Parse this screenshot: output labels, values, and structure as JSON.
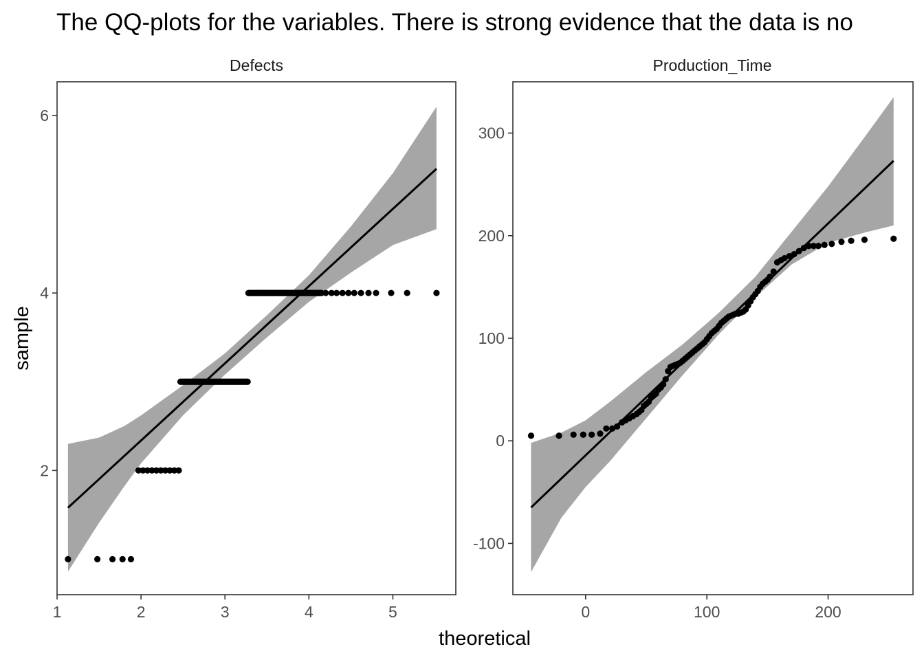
{
  "title": "The QQ-plots for the  variables. There is strong evidence that the data is no",
  "xlabel": "theoretical",
  "ylabel": "sample",
  "colors": {
    "band": "#a6a6a6",
    "line": "#000000",
    "points": "#000000",
    "border": "#333333"
  },
  "chart_data": [
    {
      "type": "scatter",
      "facet": "Defects",
      "xlim": [
        1.0,
        5.75
      ],
      "ylim": [
        0.6,
        6.38
      ],
      "x_ticks": [
        1,
        2,
        3,
        4,
        5
      ],
      "y_ticks": [
        2,
        4,
        6
      ],
      "reference_line": {
        "x": [
          1.13,
          5.52
        ],
        "y": [
          1.58,
          5.4
        ]
      },
      "confidence_band": {
        "x": [
          1.13,
          1.5,
          1.8,
          2.0,
          2.5,
          3.0,
          3.5,
          4.0,
          4.5,
          5.0,
          5.52
        ],
        "lower": [
          0.86,
          1.41,
          1.82,
          2.08,
          2.62,
          3.08,
          3.5,
          3.9,
          4.23,
          4.54,
          4.72
        ],
        "upper": [
          2.3,
          2.37,
          2.5,
          2.62,
          2.96,
          3.32,
          3.75,
          4.2,
          4.75,
          5.35,
          6.1
        ]
      },
      "points_by_level": [
        {
          "y": 1,
          "x": [
            1.13,
            1.48,
            1.66,
            1.78,
            1.88
          ]
        },
        {
          "y": 2,
          "x_from": 1.97,
          "x_to": 2.45,
          "n": 10
        },
        {
          "y": 3,
          "x_from": 2.47,
          "x_to": 3.27,
          "n": 60
        },
        {
          "y": 4,
          "x_from": 3.28,
          "x_to": 4.15,
          "n": 110
        },
        {
          "y": 4,
          "x": [
            4.2,
            4.27,
            4.33,
            4.4,
            4.47,
            4.54,
            4.62,
            4.71,
            4.8,
            4.98,
            5.17,
            5.52
          ]
        }
      ]
    },
    {
      "type": "scatter",
      "facet": "Production_Time",
      "xlim": [
        -60,
        270
      ],
      "ylim": [
        -150,
        350
      ],
      "x_ticks": [
        0,
        100,
        200
      ],
      "y_ticks": [
        -100,
        0,
        100,
        200,
        300
      ],
      "reference_line": {
        "x": [
          -45,
          254
        ],
        "y": [
          -65,
          273
        ]
      },
      "confidence_band": {
        "x": [
          -45,
          -20,
          0,
          20,
          50,
          80,
          110,
          140,
          170,
          200,
          230,
          254
        ],
        "lower": [
          -128,
          -75,
          -45,
          -20,
          22,
          64,
          104,
          140,
          172,
          193,
          203,
          210
        ],
        "upper": [
          -2,
          8,
          20,
          38,
          67,
          94,
          125,
          160,
          204,
          248,
          296,
          335
        ]
      },
      "points": [
        [
          -45,
          5
        ],
        [
          -22,
          5
        ],
        [
          -10,
          6
        ],
        [
          -2,
          6
        ],
        [
          5,
          6
        ],
        [
          12,
          7
        ],
        [
          17,
          12
        ],
        [
          22,
          12
        ],
        [
          26,
          14
        ],
        [
          30,
          18
        ],
        [
          33,
          20
        ],
        [
          36,
          22
        ],
        [
          39,
          24
        ],
        [
          42,
          26
        ],
        [
          44,
          28
        ],
        [
          46,
          30
        ],
        [
          48,
          34
        ],
        [
          50,
          36
        ],
        [
          52,
          38
        ],
        [
          54,
          42
        ],
        [
          56,
          44
        ],
        [
          58,
          46
        ],
        [
          60,
          50
        ],
        [
          62,
          52
        ],
        [
          64,
          55
        ],
        [
          66,
          60
        ],
        [
          68,
          68
        ],
        [
          70,
          72
        ],
        [
          72,
          73
        ],
        [
          74,
          74
        ],
        [
          76,
          75
        ],
        [
          78,
          76
        ],
        [
          80,
          78
        ],
        [
          82,
          80
        ],
        [
          84,
          82
        ],
        [
          86,
          84
        ],
        [
          88,
          86
        ],
        [
          90,
          88
        ],
        [
          92,
          90
        ],
        [
          94,
          92
        ],
        [
          96,
          94
        ],
        [
          98,
          96
        ],
        [
          100,
          99
        ],
        [
          102,
          102
        ],
        [
          104,
          105
        ],
        [
          106,
          107
        ],
        [
          108,
          109
        ],
        [
          110,
          112
        ],
        [
          112,
          115
        ],
        [
          114,
          117
        ],
        [
          116,
          119
        ],
        [
          118,
          121
        ],
        [
          120,
          122
        ],
        [
          122,
          123
        ],
        [
          124,
          124
        ],
        [
          126,
          124
        ],
        [
          128,
          125
        ],
        [
          130,
          126
        ],
        [
          132,
          128
        ],
        [
          134,
          132
        ],
        [
          136,
          136
        ],
        [
          138,
          140
        ],
        [
          140,
          143
        ],
        [
          142,
          146
        ],
        [
          144,
          150
        ],
        [
          146,
          153
        ],
        [
          148,
          155
        ],
        [
          150,
          157
        ],
        [
          152,
          160
        ],
        [
          155,
          165
        ],
        [
          158,
          174
        ],
        [
          161,
          176
        ],
        [
          164,
          178
        ],
        [
          168,
          180
        ],
        [
          172,
          182
        ],
        [
          176,
          185
        ],
        [
          180,
          188
        ],
        [
          184,
          190
        ],
        [
          188,
          190
        ],
        [
          192,
          190
        ],
        [
          197,
          191
        ],
        [
          203,
          192
        ],
        [
          211,
          194
        ],
        [
          219,
          195
        ],
        [
          230,
          196
        ],
        [
          254,
          197
        ]
      ]
    }
  ]
}
